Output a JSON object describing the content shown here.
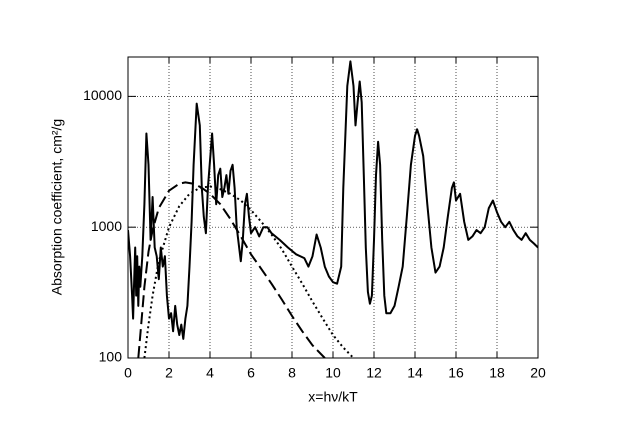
{
  "chart_data": {
    "type": "line",
    "xlabel": "x=hν/kT",
    "ylabel": "Absorption coefficient, cm²/g",
    "xlim": [
      0,
      20
    ],
    "xticks": [
      0,
      2,
      4,
      6,
      8,
      10,
      12,
      14,
      16,
      18,
      20
    ],
    "ylim": [
      100,
      20000
    ],
    "yticks": [
      100,
      1000,
      10000
    ],
    "log_y": true,
    "grid": true,
    "series": [
      {
        "color": "#000000",
        "style": "solid",
        "x": [
          0,
          0.1,
          0.2,
          0.25,
          0.3,
          0.35,
          0.4,
          0.45,
          0.5,
          0.55,
          0.6,
          0.7,
          0.8,
          0.9,
          1.0,
          1.1,
          1.2,
          1.3,
          1.4,
          1.5,
          1.6,
          1.7,
          1.8,
          1.9,
          2.0,
          2.1,
          2.2,
          2.3,
          2.4,
          2.5,
          2.6,
          2.7,
          2.8,
          2.9,
          3.0,
          3.1,
          3.2,
          3.35,
          3.5,
          3.6,
          3.7,
          3.8,
          3.9,
          4.1,
          4.2,
          4.3,
          4.4,
          4.5,
          4.6,
          4.7,
          4.8,
          4.9,
          5.0,
          5.1,
          5.2,
          5.3,
          5.5,
          5.6,
          5.7,
          5.8,
          5.9,
          6.0,
          6.2,
          6.4,
          6.6,
          6.8,
          7.0,
          7.4,
          7.8,
          8.2,
          8.6,
          8.8,
          9.0,
          9.2,
          9.4,
          9.6,
          9.8,
          10.0,
          10.2,
          10.4,
          10.5,
          10.7,
          10.85,
          11.0,
          11.1,
          11.2,
          11.3,
          11.4,
          11.5,
          11.6,
          11.7,
          11.8,
          11.9,
          12.0,
          12.1,
          12.2,
          12.3,
          12.4,
          12.5,
          12.6,
          12.8,
          13.0,
          13.2,
          13.4,
          13.6,
          13.8,
          14.0,
          14.1,
          14.2,
          14.4,
          14.6,
          14.8,
          15.0,
          15.2,
          15.4,
          15.6,
          15.8,
          15.9,
          16.0,
          16.2,
          16.4,
          16.6,
          16.8,
          17.0,
          17.2,
          17.4,
          17.6,
          17.8,
          18.0,
          18.2,
          18.4,
          18.6,
          18.8,
          19.0,
          19.2,
          19.4,
          19.6,
          19.8,
          20.0
        ],
        "values": [
          950,
          600,
          300,
          200,
          400,
          700,
          300,
          600,
          250,
          500,
          350,
          600,
          1500,
          5200,
          3000,
          800,
          1700,
          700,
          600,
          400,
          700,
          500,
          600,
          300,
          200,
          220,
          160,
          250,
          180,
          150,
          180,
          140,
          200,
          250,
          500,
          1100,
          3000,
          8800,
          6000,
          2000,
          1200,
          900,
          2000,
          5200,
          3000,
          1500,
          2500,
          2800,
          1700,
          2000,
          2500,
          1800,
          2700,
          3000,
          2000,
          1000,
          550,
          800,
          1500,
          1800,
          1200,
          900,
          1000,
          850,
          1000,
          1000,
          900,
          800,
          700,
          620,
          580,
          500,
          600,
          880,
          700,
          500,
          420,
          380,
          370,
          500,
          2000,
          12000,
          18500,
          12000,
          6000,
          9000,
          13000,
          9000,
          2500,
          700,
          320,
          260,
          300,
          800,
          2500,
          4500,
          3000,
          800,
          300,
          220,
          220,
          250,
          350,
          500,
          1200,
          3000,
          5000,
          5600,
          5000,
          3500,
          1500,
          700,
          450,
          500,
          700,
          1200,
          2000,
          2200,
          1600,
          1800,
          1100,
          800,
          850,
          950,
          900,
          1000,
          1400,
          1600,
          1300,
          1100,
          1000,
          1100,
          950,
          850,
          800,
          900,
          800,
          750,
          700
        ]
      },
      {
        "color": "#000000",
        "style": "dashed",
        "x": [
          0.5,
          0.6,
          0.8,
          1.0,
          1.2,
          1.5,
          2.0,
          2.5,
          2.8,
          3.2,
          3.6,
          4.0,
          4.5,
          5.0,
          5.5,
          6.0,
          6.5,
          7.0,
          7.5,
          8.0,
          8.5,
          9.0,
          9.6
        ],
        "values": [
          100,
          150,
          350,
          650,
          950,
          1400,
          1900,
          2150,
          2200,
          2150,
          2000,
          1800,
          1500,
          1150,
          850,
          620,
          480,
          370,
          280,
          210,
          160,
          125,
          100
        ]
      },
      {
        "color": "#000000",
        "style": "dotted",
        "x": [
          0.8,
          1.0,
          1.2,
          1.5,
          2.0,
          2.5,
          3.0,
          3.5,
          4.0,
          4.5,
          5.0,
          5.5,
          6.0,
          6.5,
          7.0,
          7.5,
          8.0,
          8.5,
          9.0,
          9.5,
          10.0,
          10.5,
          11.0
        ],
        "values": [
          100,
          180,
          300,
          550,
          1000,
          1450,
          1800,
          2000,
          2050,
          1950,
          1800,
          1600,
          1350,
          1100,
          880,
          680,
          500,
          370,
          270,
          200,
          150,
          120,
          100
        ]
      }
    ]
  }
}
